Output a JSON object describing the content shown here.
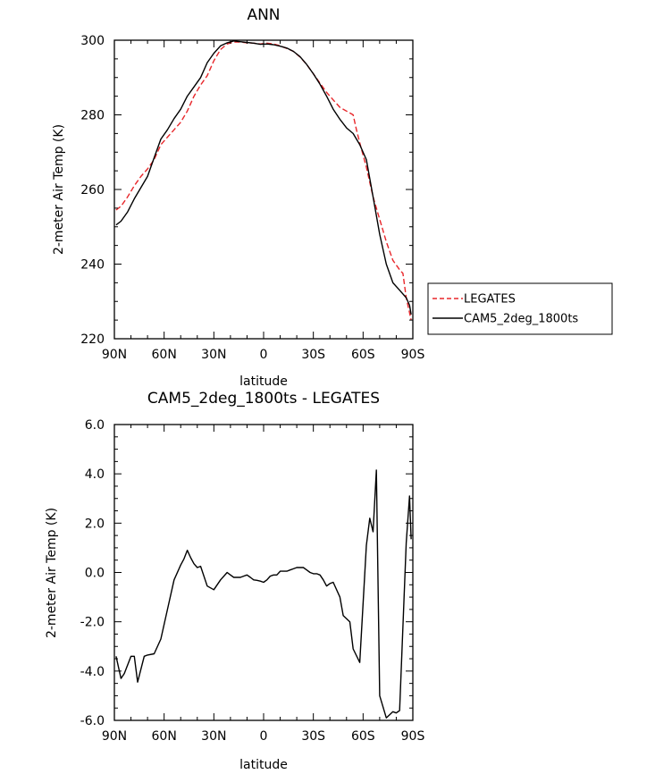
{
  "chart_data": [
    {
      "type": "line",
      "title": "ANN",
      "xlabel": "latitude",
      "ylabel": "2-meter Air Temp (K)",
      "xlim": [
        90,
        -90
      ],
      "ylim": [
        220,
        300
      ],
      "x_ticks": [
        90,
        60,
        30,
        0,
        -30,
        -60,
        -90
      ],
      "x_tick_labels": [
        "90N",
        "60N",
        "30N",
        "0",
        "30S",
        "60S",
        "90S"
      ],
      "y_ticks": [
        220,
        240,
        260,
        280,
        300
      ],
      "y_tick_labels": [
        "220",
        "240",
        "260",
        "280",
        "300"
      ],
      "legend": "right",
      "series": [
        {
          "name": "LEGATES",
          "color": "#e8262a",
          "dash": "dashed",
          "x": [
            89,
            86,
            82,
            78,
            74,
            70,
            66,
            62,
            58,
            54,
            50,
            46,
            42,
            38,
            34,
            30,
            26,
            22,
            18,
            14,
            10,
            6,
            2,
            -2,
            -6,
            -10,
            -14,
            -18,
            -22,
            -26,
            -30,
            -34,
            -38,
            -42,
            -46,
            -50,
            -54,
            -56,
            -58,
            -62,
            -66,
            -70,
            -74,
            -78,
            -82,
            -84,
            -86,
            -88,
            -89
          ],
          "values": [
            254.5,
            255.5,
            258,
            261,
            263.5,
            265.5,
            268,
            272,
            274,
            276,
            278,
            281,
            285,
            288,
            290.5,
            294.5,
            297.5,
            299,
            299.5,
            299.5,
            299.3,
            299.2,
            299,
            299.2,
            299,
            298.5,
            297.8,
            297,
            295.5,
            293.5,
            291,
            288.5,
            286,
            284,
            282,
            281,
            280,
            276,
            272.5,
            266,
            258,
            252,
            246,
            241,
            238.5,
            237.5,
            231,
            227,
            225
          ]
        },
        {
          "name": "CAM5_2deg_1800ts",
          "color": "#000000",
          "dash": "solid",
          "x": [
            89,
            86,
            82,
            78,
            74,
            70,
            66,
            62,
            58,
            54,
            50,
            46,
            42,
            38,
            34,
            30,
            26,
            22,
            18,
            14,
            10,
            6,
            2,
            -2,
            -6,
            -10,
            -14,
            -18,
            -22,
            -26,
            -30,
            -34,
            -38,
            -42,
            -46,
            -50,
            -54,
            -58,
            -62,
            -66,
            -70,
            -74,
            -78,
            -82,
            -86,
            -88,
            -89
          ],
          "values": [
            250.5,
            251.5,
            254,
            257.5,
            260.5,
            263.5,
            268.5,
            273.5,
            276,
            279,
            281.5,
            285,
            287.5,
            290,
            294,
            296.5,
            298.5,
            299.3,
            299.8,
            299.6,
            299.4,
            299.2,
            298.9,
            299,
            298.8,
            298.4,
            297.9,
            297,
            295.6,
            293.5,
            291,
            288.2,
            285,
            281.5,
            278.8,
            276.5,
            275,
            272,
            268,
            258,
            248,
            240,
            235,
            233,
            231,
            229,
            226.5
          ]
        }
      ]
    },
    {
      "type": "line",
      "title": "CAM5_2deg_1800ts - LEGATES",
      "xlabel": "latitude",
      "ylabel": "2-meter Air Temp (K)",
      "xlim": [
        90,
        -90
      ],
      "ylim": [
        -6,
        6
      ],
      "x_ticks": [
        90,
        60,
        30,
        0,
        -30,
        -60,
        -90
      ],
      "x_tick_labels": [
        "90N",
        "60N",
        "30N",
        "0",
        "30S",
        "60S",
        "90S"
      ],
      "y_ticks": [
        -6,
        -4,
        -2,
        0,
        2,
        4,
        6
      ],
      "y_tick_labels": [
        "-6.0",
        "-4.0",
        "-2.0",
        "0.0",
        "2.0",
        "4.0",
        "6.0"
      ],
      "series": [
        {
          "color": "#000000",
          "dash": "solid",
          "x": [
            89,
            86,
            84,
            80,
            78,
            76,
            72,
            70,
            66,
            62,
            58,
            54,
            50,
            48,
            46,
            44,
            42,
            40,
            38,
            34,
            30,
            26,
            22,
            20,
            18,
            14,
            12,
            10,
            8,
            6,
            4,
            2,
            0,
            -2,
            -4,
            -6,
            -8,
            -10,
            -12,
            -14,
            -16,
            -18,
            -20,
            -22,
            -24,
            -26,
            -28,
            -30,
            -32,
            -34,
            -36,
            -38,
            -40,
            -42,
            -46,
            -48,
            -52,
            -54,
            -58,
            -62,
            -64,
            -66,
            -68,
            -70,
            -74,
            -78,
            -80,
            -82,
            -86,
            -88,
            -89
          ],
          "values": [
            -3.4,
            -4.3,
            -4.1,
            -3.4,
            -3.4,
            -4.45,
            -3.4,
            -3.35,
            -3.3,
            -2.7,
            -1.5,
            -0.3,
            0.3,
            0.55,
            0.9,
            0.6,
            0.35,
            0.2,
            0.25,
            -0.55,
            -0.7,
            -0.3,
            0.0,
            -0.1,
            -0.2,
            -0.2,
            -0.15,
            -0.1,
            -0.2,
            -0.3,
            -0.32,
            -0.35,
            -0.4,
            -0.3,
            -0.15,
            -0.1,
            -0.1,
            0.05,
            0.05,
            0.05,
            0.1,
            0.15,
            0.2,
            0.2,
            0.2,
            0.1,
            0.0,
            -0.05,
            -0.05,
            -0.1,
            -0.3,
            -0.55,
            -0.45,
            -0.4,
            -1.0,
            -1.75,
            -2.0,
            -3.1,
            -3.65,
            1.1,
            2.2,
            1.65,
            4.15,
            -5.0,
            -5.9,
            -5.65,
            -5.7,
            -5.6,
            1.2,
            3.1,
            1.35
          ]
        }
      ]
    }
  ]
}
